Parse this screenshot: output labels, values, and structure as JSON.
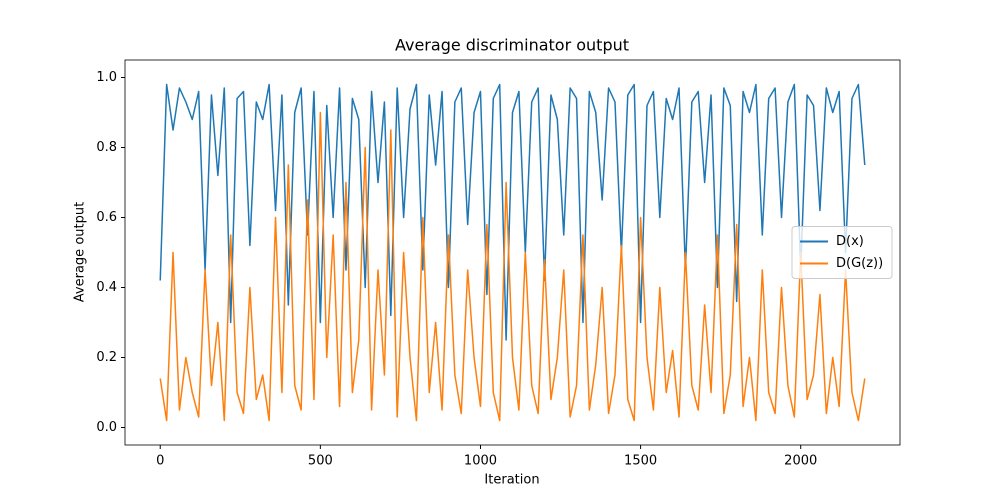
{
  "chart_data": {
    "type": "line",
    "title": "Average discriminator output",
    "xlabel": "Iteration",
    "ylabel": "Average output",
    "x": [
      0,
      20,
      40,
      60,
      80,
      100,
      120,
      140,
      160,
      180,
      200,
      220,
      240,
      260,
      280,
      300,
      320,
      340,
      360,
      380,
      400,
      420,
      440,
      460,
      480,
      500,
      520,
      540,
      560,
      580,
      600,
      620,
      640,
      660,
      680,
      700,
      720,
      740,
      760,
      780,
      800,
      820,
      840,
      860,
      880,
      900,
      920,
      940,
      960,
      980,
      1000,
      1020,
      1040,
      1060,
      1080,
      1100,
      1120,
      1140,
      1160,
      1180,
      1200,
      1220,
      1240,
      1260,
      1280,
      1300,
      1320,
      1340,
      1360,
      1380,
      1400,
      1420,
      1440,
      1460,
      1480,
      1500,
      1520,
      1540,
      1560,
      1580,
      1600,
      1620,
      1640,
      1660,
      1680,
      1700,
      1720,
      1740,
      1760,
      1780,
      1800,
      1820,
      1840,
      1860,
      1880,
      1900,
      1920,
      1940,
      1960,
      1980,
      2000,
      2020,
      2040,
      2060,
      2080,
      2100,
      2120,
      2140,
      2160,
      2180,
      2200
    ],
    "series": [
      {
        "name": "D(x)",
        "color": "#1f77b4",
        "values": [
          0.42,
          0.98,
          0.85,
          0.97,
          0.93,
          0.88,
          0.96,
          0.45,
          0.95,
          0.72,
          0.97,
          0.3,
          0.94,
          0.96,
          0.52,
          0.93,
          0.88,
          0.98,
          0.62,
          0.95,
          0.35,
          0.9,
          0.97,
          0.55,
          0.96,
          0.3,
          0.92,
          0.6,
          0.97,
          0.45,
          0.94,
          0.88,
          0.4,
          0.96,
          0.7,
          0.93,
          0.32,
          0.97,
          0.6,
          0.91,
          0.98,
          0.45,
          0.95,
          0.75,
          0.96,
          0.4,
          0.93,
          0.97,
          0.58,
          0.9,
          0.96,
          0.38,
          0.94,
          0.98,
          0.25,
          0.9,
          0.96,
          0.5,
          0.93,
          0.97,
          0.42,
          0.95,
          0.88,
          0.55,
          0.97,
          0.94,
          0.3,
          0.96,
          0.9,
          0.65,
          0.97,
          0.93,
          0.5,
          0.95,
          0.98,
          0.3,
          0.92,
          0.96,
          0.6,
          0.94,
          0.88,
          0.97,
          0.45,
          0.93,
          0.96,
          0.7,
          0.95,
          0.4,
          0.97,
          0.92,
          0.36,
          0.96,
          0.9,
          0.98,
          0.55,
          0.94,
          0.97,
          0.6,
          0.93,
          0.98,
          0.45,
          0.95,
          0.92,
          0.62,
          0.97,
          0.9,
          0.96,
          0.5,
          0.94,
          0.98,
          0.75
        ]
      },
      {
        "name": "D(G(z))",
        "color": "#ff7f0e",
        "values": [
          0.14,
          0.02,
          0.5,
          0.05,
          0.2,
          0.1,
          0.03,
          0.45,
          0.12,
          0.3,
          0.02,
          0.55,
          0.1,
          0.04,
          0.4,
          0.08,
          0.15,
          0.02,
          0.6,
          0.1,
          0.75,
          0.12,
          0.05,
          0.65,
          0.08,
          0.9,
          0.2,
          0.55,
          0.06,
          0.7,
          0.1,
          0.25,
          0.8,
          0.05,
          0.45,
          0.15,
          0.85,
          0.03,
          0.5,
          0.2,
          0.02,
          0.6,
          0.1,
          0.3,
          0.05,
          0.55,
          0.15,
          0.04,
          0.45,
          0.2,
          0.06,
          0.58,
          0.1,
          0.02,
          0.7,
          0.2,
          0.05,
          0.5,
          0.12,
          0.04,
          0.48,
          0.08,
          0.2,
          0.45,
          0.03,
          0.12,
          0.55,
          0.05,
          0.18,
          0.4,
          0.04,
          0.15,
          0.52,
          0.08,
          0.02,
          0.6,
          0.2,
          0.05,
          0.4,
          0.1,
          0.22,
          0.03,
          0.5,
          0.12,
          0.05,
          0.35,
          0.1,
          0.55,
          0.04,
          0.15,
          0.58,
          0.06,
          0.2,
          0.02,
          0.45,
          0.1,
          0.04,
          0.4,
          0.12,
          0.03,
          0.5,
          0.08,
          0.15,
          0.38,
          0.04,
          0.2,
          0.06,
          0.45,
          0.1,
          0.02,
          0.14
        ]
      }
    ],
    "xlim": [
      -110,
      2310
    ],
    "xticks": [
      0,
      500,
      1000,
      1500,
      2000
    ],
    "ylim": [
      -0.05,
      1.05
    ],
    "yticks": [
      {
        "value": 0,
        "label": "0.0"
      },
      0.2,
      0.4,
      0.6,
      0.8,
      {
        "value": 1,
        "label": "1.0"
      }
    ],
    "grid": false,
    "legend": "center right"
  }
}
